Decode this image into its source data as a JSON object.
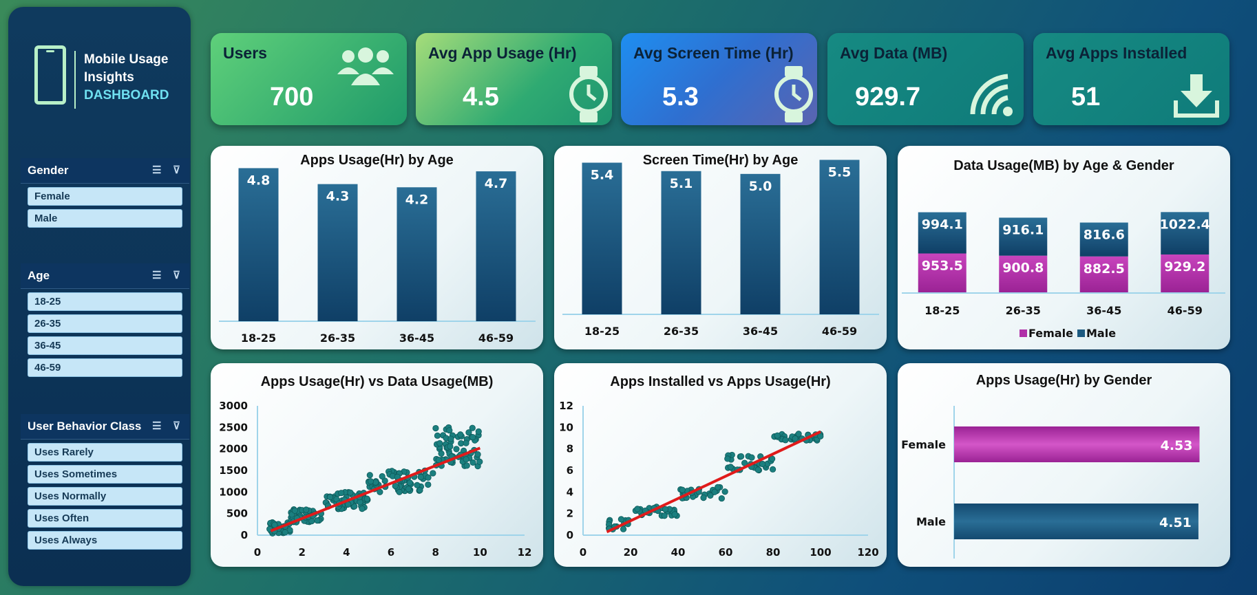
{
  "sidebar": {
    "logo": {
      "line1": "Mobile Usage",
      "line2": "Insights",
      "line3": "DASHBOARD"
    },
    "slicers": [
      {
        "title": "Gender",
        "items": [
          "Female",
          "Male"
        ]
      },
      {
        "title": "Age",
        "items": [
          "18-25",
          "26-35",
          "36-45",
          "46-59"
        ]
      },
      {
        "title": "User Behavior Class",
        "items": [
          "Uses Rarely",
          "Uses Sometimes",
          "Uses Normally",
          "Uses Often",
          "Uses Always"
        ]
      }
    ]
  },
  "kpis": [
    {
      "title": "Users",
      "value": "700",
      "icon": "users-icon"
    },
    {
      "title": "Avg App Usage (Hr)",
      "value": "4.5",
      "icon": "watch-icon"
    },
    {
      "title": "Avg Screen Time (Hr)",
      "value": "5.3",
      "icon": "watch-icon"
    },
    {
      "title": "Avg Data (MB)",
      "value": "929.7",
      "icon": "wifi-icon"
    },
    {
      "title": "Avg Apps Installed",
      "value": "51",
      "icon": "download-icon"
    }
  ],
  "colors": {
    "bar": "#1c5a80",
    "female": "#b02fa8",
    "male": "#1c5a80",
    "scatter": "#1b7f7f",
    "trend": "#e01b1b"
  },
  "chart_data": [
    {
      "type": "bar",
      "title": "Apps Usage(Hr) by Age",
      "categories": [
        "18-25",
        "26-35",
        "36-45",
        "46-59"
      ],
      "values": [
        4.8,
        4.3,
        4.2,
        4.7
      ],
      "labels": [
        "4.8",
        "4.3",
        "4.2",
        "4.7"
      ]
    },
    {
      "type": "bar",
      "title": "Screen Time(Hr) by Age",
      "categories": [
        "18-25",
        "26-35",
        "36-45",
        "46-59"
      ],
      "values": [
        5.4,
        5.1,
        5.0,
        5.5
      ],
      "labels": [
        "5.4",
        "5.1",
        "5.0",
        "5.5"
      ]
    },
    {
      "type": "bar",
      "stacked": true,
      "title": "Data Usage(MB) by Age & Gender",
      "categories": [
        "18-25",
        "26-35",
        "36-45",
        "46-59"
      ],
      "series": [
        {
          "name": "Female",
          "values": [
            953.5,
            900.8,
            882.5,
            929.2
          ],
          "labels": [
            "953.5",
            "900.8",
            "882.5",
            "929.2"
          ]
        },
        {
          "name": "Male",
          "values": [
            994.1,
            916.1,
            816.6,
            1022.4
          ],
          "labels": [
            "994.1",
            "916.1",
            "816.6",
            "1022.4"
          ]
        }
      ],
      "legend": "bottom"
    },
    {
      "type": "scatter",
      "title": "Apps Usage(Hr) vs Data Usage(MB)",
      "xlim": [
        0,
        12
      ],
      "ylim": [
        0,
        3000
      ],
      "xticks": [
        "0",
        "2",
        "4",
        "6",
        "8",
        "10",
        "12"
      ],
      "yticks": [
        "0",
        "500",
        "1000",
        "1500",
        "2000",
        "2500",
        "3000"
      ],
      "trend": [
        [
          0.6,
          100
        ],
        [
          10,
          2020
        ]
      ]
    },
    {
      "type": "scatter",
      "title": "Apps Installed vs Apps Usage(Hr)",
      "xlim": [
        0,
        120
      ],
      "ylim": [
        0,
        12
      ],
      "xticks": [
        "0",
        "20",
        "40",
        "60",
        "80",
        "100",
        "120"
      ],
      "yticks": [
        "0",
        "2",
        "4",
        "6",
        "8",
        "10",
        "12"
      ],
      "trend": [
        [
          10,
          0.3
        ],
        [
          100,
          9.6
        ]
      ]
    },
    {
      "type": "bar",
      "orientation": "horizontal",
      "title": "Apps Usage(Hr) by Gender",
      "categories": [
        "Female",
        "Male"
      ],
      "values": [
        4.53,
        4.51
      ],
      "labels": [
        "4.53",
        "4.51"
      ]
    }
  ]
}
